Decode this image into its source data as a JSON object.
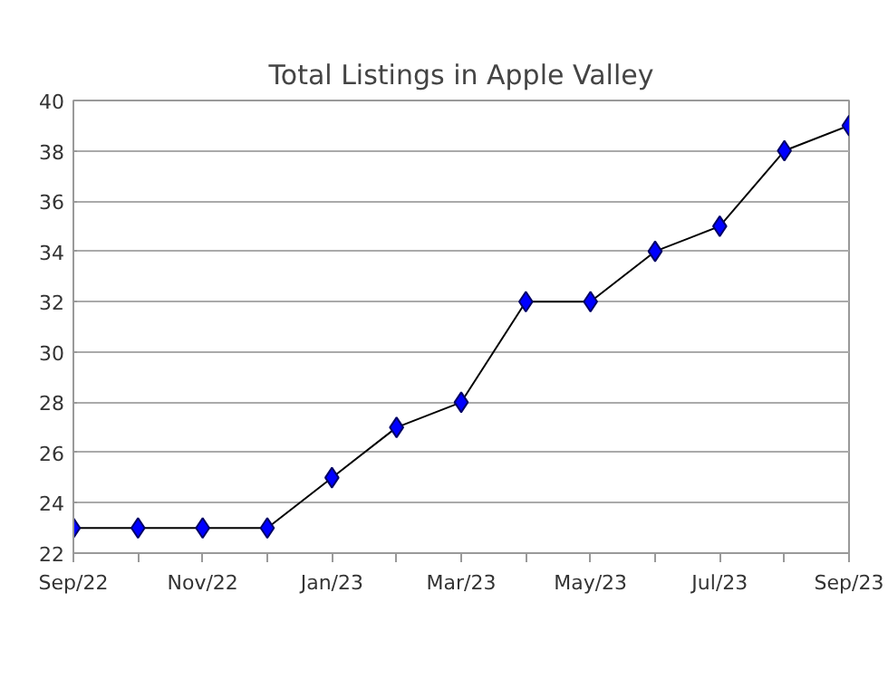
{
  "chart_data": {
    "type": "line",
    "title": "Total Listings in Apple Valley",
    "categories": [
      "Sep/22",
      null,
      "Nov/22",
      null,
      "Jan/23",
      null,
      "Mar/23",
      null,
      "May/23",
      null,
      "Jul/23",
      null,
      "Sep/23"
    ],
    "series": [
      {
        "color": "#0000ff",
        "values": [
          23,
          23,
          23,
          23,
          25,
          27,
          28,
          32,
          32,
          34,
          35,
          38,
          39
        ]
      }
    ],
    "ylim": [
      22,
      40
    ],
    "yticks": [
      22,
      24,
      26,
      28,
      30,
      32,
      34,
      36,
      38,
      40
    ],
    "grid": "y",
    "marker": "diamond",
    "line_style": "solid"
  }
}
